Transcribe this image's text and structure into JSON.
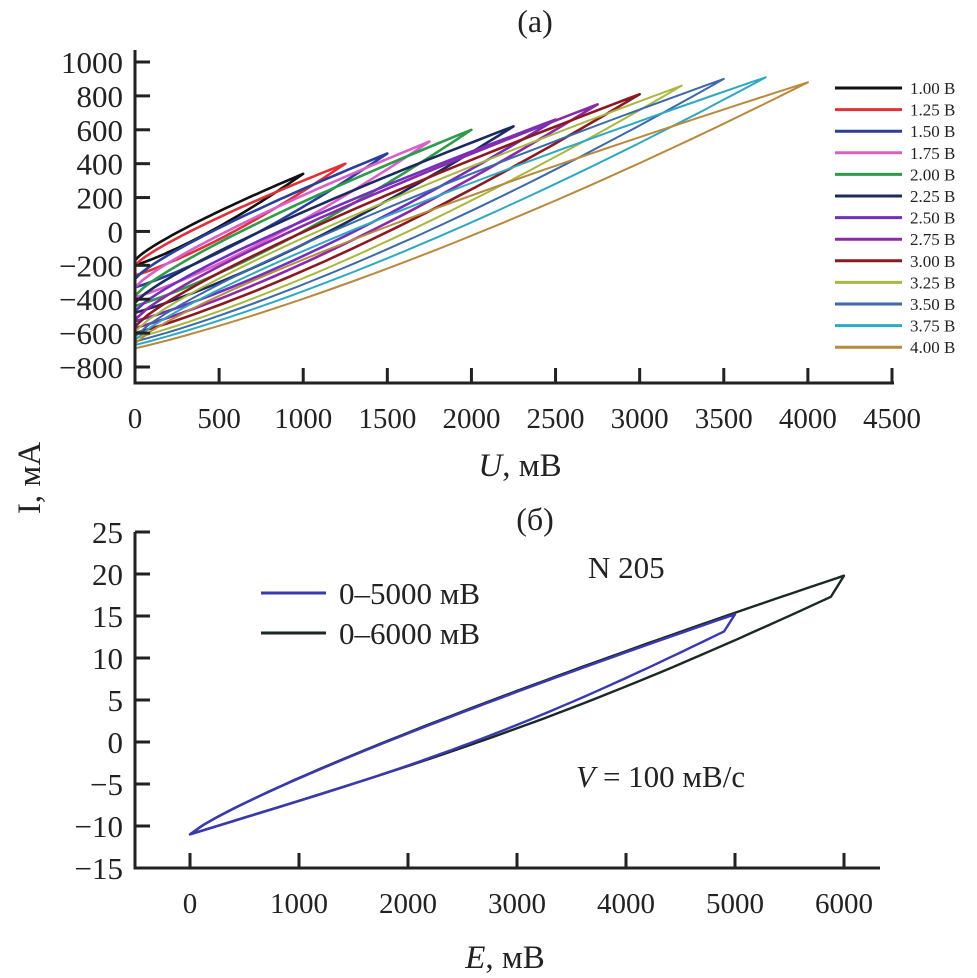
{
  "shared_ylabel": "I, мА",
  "chart_data": [
    {
      "type": "line",
      "panel": "(a)",
      "title": "(a)",
      "xlabel_var": "U",
      "xlabel_unit": ", мВ",
      "ylabel": "I, мА",
      "xlim": [
        0,
        4500
      ],
      "ylim": [
        -900,
        1000
      ],
      "xticks": [
        0,
        500,
        1000,
        1500,
        2000,
        2500,
        3000,
        3500,
        4000,
        4500
      ],
      "xtick_labels": [
        "0",
        "500",
        "1000",
        "1500",
        "2000",
        "2500",
        "3000",
        "3500",
        "4000",
        "4500"
      ],
      "yticks": [
        1000,
        800,
        600,
        400,
        200,
        0,
        -200,
        -400,
        -600,
        -800
      ],
      "ytick_labels": [
        "1000",
        "800",
        "600",
        "400",
        "200",
        "0",
        "−200",
        "−400",
        "−600",
        "−800"
      ],
      "legend_placement": "right",
      "grid": false,
      "series": [
        {
          "name": "1.00 В",
          "color": "#111111",
          "vmax": 1000,
          "i_top": 340,
          "i_start": -170,
          "i_low": -200
        },
        {
          "name": "1.25 В",
          "color": "#e0303a",
          "vmax": 1250,
          "i_top": 400,
          "i_start": -200,
          "i_low": -260
        },
        {
          "name": "1.50 В",
          "color": "#2a3f9a",
          "vmax": 1500,
          "i_top": 460,
          "i_start": -280,
          "i_low": -330
        },
        {
          "name": "1.75 В",
          "color": "#d860c8",
          "vmax": 1750,
          "i_top": 530,
          "i_start": -330,
          "i_low": -390
        },
        {
          "name": "2.00 В",
          "color": "#2e9a4a",
          "vmax": 2000,
          "i_top": 600,
          "i_start": -380,
          "i_low": -440
        },
        {
          "name": "2.25 В",
          "color": "#1c2a60",
          "vmax": 2250,
          "i_top": 620,
          "i_start": -420,
          "i_low": -480
        },
        {
          "name": "2.50 В",
          "color": "#7030c0",
          "vmax": 2500,
          "i_top": 660,
          "i_start": -470,
          "i_low": -530
        },
        {
          "name": "2.75 В",
          "color": "#8a2aa8",
          "vmax": 2750,
          "i_top": 750,
          "i_start": -520,
          "i_low": -570
        },
        {
          "name": "3.00 В",
          "color": "#8a1a20",
          "vmax": 3000,
          "i_top": 810,
          "i_start": -560,
          "i_low": -600
        },
        {
          "name": "3.25 В",
          "color": "#a8b840",
          "vmax": 3250,
          "i_top": 860,
          "i_start": -590,
          "i_low": -630
        },
        {
          "name": "3.50 В",
          "color": "#3a6aa8",
          "vmax": 3500,
          "i_top": 900,
          "i_start": -620,
          "i_low": -650
        },
        {
          "name": "3.75 В",
          "color": "#30a8c0",
          "vmax": 3750,
          "i_top": 910,
          "i_start": -640,
          "i_low": -670
        },
        {
          "name": "4.00 В",
          "color": "#b88a40",
          "vmax": 4000,
          "i_top": 880,
          "i_start": -660,
          "i_low": -690
        }
      ]
    },
    {
      "type": "line",
      "panel": "(б)",
      "title": "(б)",
      "xlabel_var": "E",
      "xlabel_unit": ", мВ",
      "ylabel": "I, мА",
      "xlim": [
        -500,
        6500
      ],
      "ylim": [
        -15,
        25
      ],
      "xticks": [
        0,
        1000,
        2000,
        3000,
        4000,
        5000,
        6000
      ],
      "xtick_labels": [
        "0",
        "1000",
        "2000",
        "3000",
        "4000",
        "5000",
        "6000"
      ],
      "yticks": [
        25,
        20,
        15,
        10,
        5,
        0,
        -5,
        -10,
        -15
      ],
      "ytick_labels": [
        "25",
        "20",
        "15",
        "10",
        "5",
        "0",
        "−5",
        "−10",
        "−15"
      ],
      "legend_placement": "top-left",
      "grid": false,
      "annotations": [
        "N 205",
        "= 100 мВ/с"
      ],
      "annotation_var": "V",
      "series": [
        {
          "name": "0–5000 мВ",
          "color": "#3a3ab0",
          "emax": 5000,
          "i_top": 15.2,
          "i_start": -11,
          "i_back_at_emax": 13.8
        },
        {
          "name": "0–6000 мВ",
          "color": "#1a2a22",
          "emax": 6000,
          "i_top": 19.8,
          "i_start": -11,
          "i_back_at_emax": 18.0
        }
      ]
    }
  ]
}
